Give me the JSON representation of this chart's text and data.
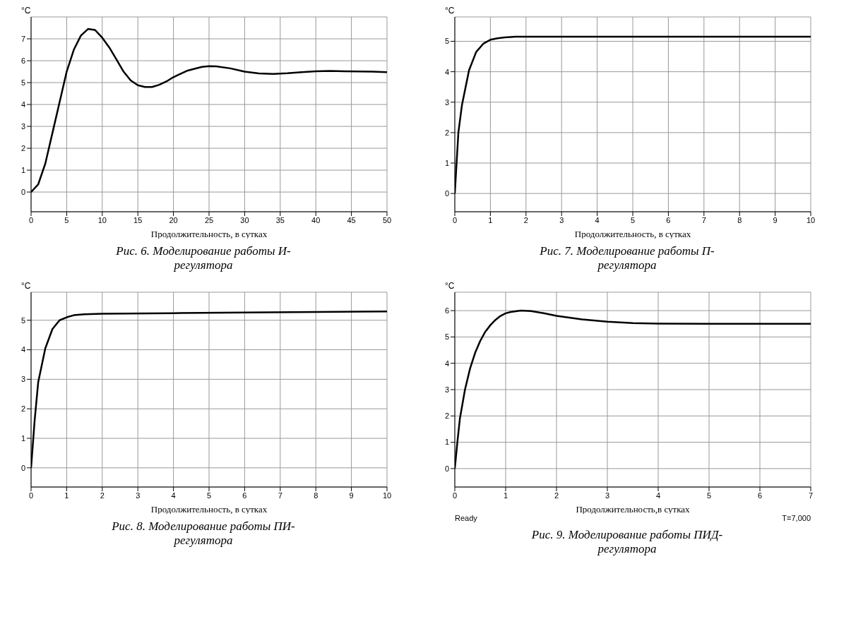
{
  "chart_data": [
    {
      "type": "line",
      "title": "Рис. 6. Моделирование работы И-регулятора",
      "xlabel": "Продолжительность, в сутках",
      "ylabel": "°C",
      "grid": true,
      "color": "#000000",
      "xlim": [
        0,
        50
      ],
      "ylim": [
        -0.9,
        8
      ],
      "xticks": [
        0,
        5,
        10,
        15,
        20,
        25,
        30,
        35,
        40,
        45,
        50
      ],
      "yticks": [
        0,
        1,
        2,
        3,
        4,
        5,
        6,
        7
      ],
      "x": [
        0,
        1,
        2,
        3,
        4,
        5,
        6,
        7,
        8,
        9,
        10,
        11,
        12,
        13,
        14,
        15,
        16,
        17,
        18,
        19,
        20,
        22,
        24,
        25,
        26,
        28,
        30,
        32,
        34,
        36,
        38,
        40,
        42,
        44,
        46,
        48,
        50
      ],
      "values": [
        0,
        0.35,
        1.3,
        2.7,
        4.1,
        5.5,
        6.5,
        7.15,
        7.45,
        7.4,
        7.05,
        6.6,
        6.05,
        5.5,
        5.1,
        4.88,
        4.8,
        4.8,
        4.9,
        5.05,
        5.25,
        5.55,
        5.72,
        5.75,
        5.74,
        5.65,
        5.5,
        5.42,
        5.4,
        5.43,
        5.48,
        5.52,
        5.53,
        5.52,
        5.51,
        5.5,
        5.48
      ]
    },
    {
      "type": "line",
      "title": "Рис. 7. Моделирование работы П-регулятора",
      "xlabel": "Продолжительность, в сутках",
      "ylabel": "°C",
      "grid": true,
      "color": "#000000",
      "xlim": [
        0,
        10
      ],
      "ylim": [
        -0.6,
        5.8
      ],
      "xticks": [
        0,
        1,
        2,
        3,
        4,
        5,
        6,
        7,
        8,
        9,
        10
      ],
      "yticks": [
        0,
        1,
        2,
        3,
        4,
        5
      ],
      "x": [
        0,
        0.1,
        0.2,
        0.4,
        0.6,
        0.8,
        1,
        1.2,
        1.4,
        1.7,
        2,
        10
      ],
      "values": [
        0,
        2,
        2.9,
        4.05,
        4.65,
        4.92,
        5.05,
        5.1,
        5.13,
        5.15,
        5.15,
        5.15
      ]
    },
    {
      "type": "line",
      "title": "Рис. 8. Моделирование работы ПИ-регулятора",
      "xlabel": "Продолжительность, в сутках",
      "ylabel": "°C",
      "grid": true,
      "color": "#000000",
      "xlim": [
        0,
        10
      ],
      "ylim": [
        -0.65,
        5.95
      ],
      "xticks": [
        0,
        1,
        2,
        3,
        4,
        5,
        6,
        7,
        8,
        9,
        10
      ],
      "yticks": [
        0,
        1,
        2,
        3,
        4,
        5
      ],
      "x": [
        0,
        0.1,
        0.2,
        0.4,
        0.6,
        0.8,
        1,
        1.2,
        1.5,
        2,
        4,
        6,
        8,
        10
      ],
      "values": [
        0,
        1.6,
        2.9,
        4.05,
        4.7,
        5.0,
        5.1,
        5.17,
        5.2,
        5.22,
        5.24,
        5.26,
        5.28,
        5.3
      ]
    },
    {
      "type": "line",
      "title": "Рис. 9. Моделирование работы ПИД-регулятора",
      "xlabel": "Продолжительность,в сутках",
      "ylabel": "°C",
      "grid": true,
      "color": "#000000",
      "xlim": [
        0,
        7
      ],
      "ylim": [
        -0.7,
        6.7
      ],
      "xticks": [
        0,
        1,
        2,
        3,
        4,
        5,
        6,
        7
      ],
      "yticks": [
        0,
        1,
        2,
        3,
        4,
        5,
        6
      ],
      "annotations": [
        "Ready",
        "T=7,000"
      ],
      "x": [
        0,
        0.05,
        0.1,
        0.2,
        0.3,
        0.4,
        0.5,
        0.6,
        0.7,
        0.8,
        0.9,
        1,
        1.1,
        1.3,
        1.5,
        1.75,
        2,
        2.5,
        3,
        3.5,
        4,
        5,
        7
      ],
      "values": [
        0,
        1,
        1.9,
        3.0,
        3.8,
        4.4,
        4.85,
        5.2,
        5.45,
        5.65,
        5.8,
        5.9,
        5.95,
        6.0,
        5.98,
        5.9,
        5.8,
        5.67,
        5.58,
        5.53,
        5.51,
        5.5,
        5.5
      ]
    }
  ]
}
